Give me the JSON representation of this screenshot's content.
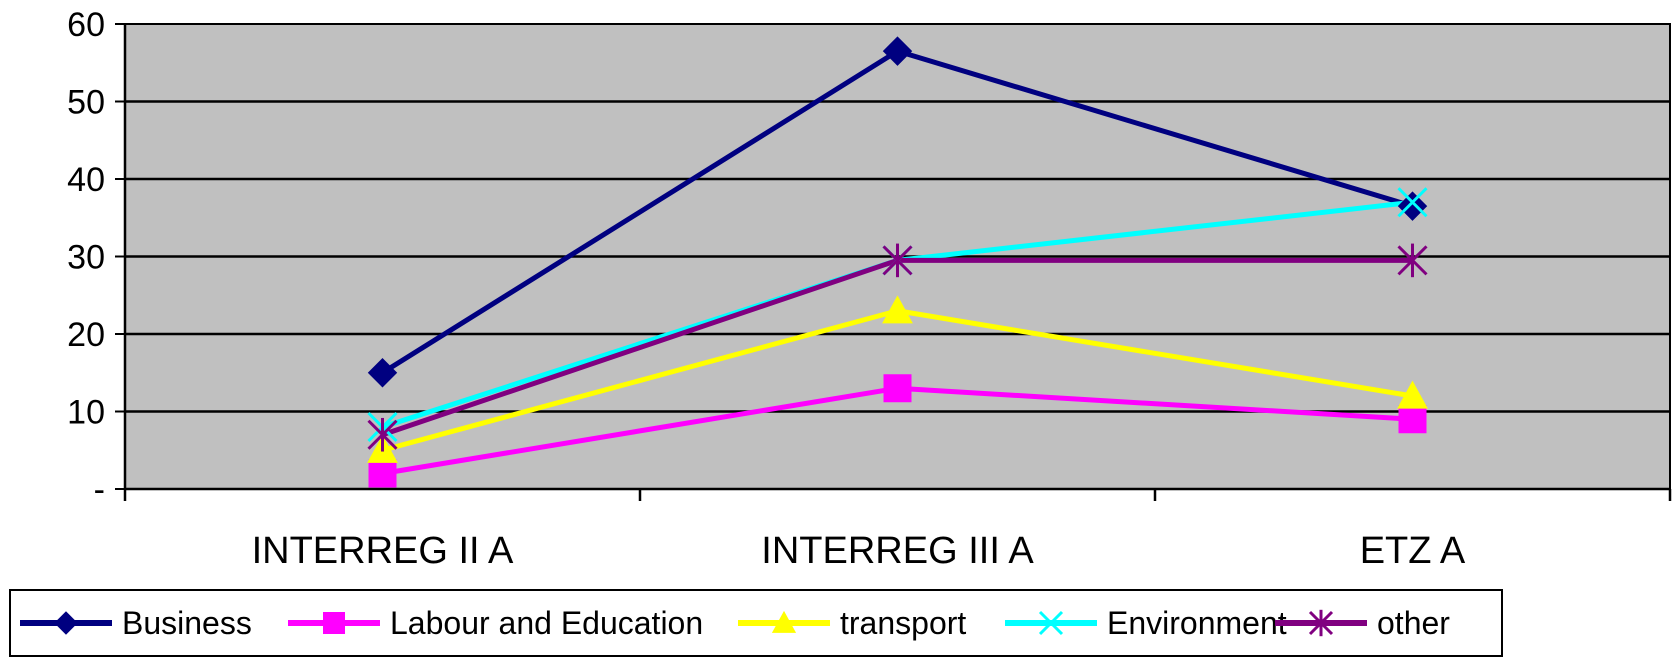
{
  "chart_data": {
    "type": "line",
    "title": "",
    "xlabel": "",
    "ylabel": "",
    "categories": [
      "INTERREG II A",
      "INTERREG III A",
      "ETZ A"
    ],
    "y_ticks": [
      "-",
      "10",
      "20",
      "30",
      "40",
      "50",
      "60"
    ],
    "ylim": [
      0,
      60
    ],
    "grid": true,
    "legend": "bottom",
    "plot_background": "#c0c0c0",
    "series": [
      {
        "name": "Business",
        "values": [
          15,
          56.5,
          36.5
        ],
        "color": "#000080",
        "marker": "diamond"
      },
      {
        "name": "Labour and Education",
        "values": [
          2,
          13,
          9
        ],
        "color": "#ff00ff",
        "marker": "square"
      },
      {
        "name": "transport",
        "values": [
          5,
          23,
          12
        ],
        "color": "#ffff00",
        "marker": "triangle"
      },
      {
        "name": "Environment",
        "values": [
          8,
          29.5,
          37
        ],
        "color": "#00ffff",
        "marker": "x"
      },
      {
        "name": "other",
        "values": [
          7,
          29.5,
          29.5
        ],
        "color": "#800080",
        "marker": "asterisk"
      }
    ]
  }
}
